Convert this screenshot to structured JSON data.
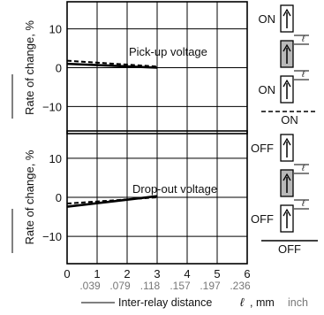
{
  "chart_data": [
    {
      "type": "line",
      "ylabel": "Rate of change, %",
      "annotation": "Pick-up voltage",
      "ylim": [
        -17,
        17
      ],
      "yticks": [
        "10",
        "0",
        "−10"
      ],
      "ytick_values": [
        10,
        0,
        -10
      ],
      "xlim": [
        0,
        6
      ],
      "series": [
        {
          "style": "solid",
          "x": [
            0,
            3
          ],
          "y": [
            1.0,
            0.0
          ]
        },
        {
          "style": "dashed",
          "x": [
            0,
            3
          ],
          "y": [
            1.8,
            0.3
          ]
        }
      ],
      "legend": {
        "top_label": "ON",
        "middle_label": "ON",
        "bottom_label": "ON",
        "distance_symbol": "ℓ"
      }
    },
    {
      "type": "line",
      "ylabel": "Rate of change, %",
      "annotation": "Drop-out voltage",
      "ylim": [
        -17,
        17
      ],
      "yticks": [
        "10",
        "0",
        "−10"
      ],
      "ytick_values": [
        10,
        0,
        -10
      ],
      "xlim": [
        0,
        6
      ],
      "series": [
        {
          "style": "solid",
          "x": [
            0,
            3
          ],
          "y": [
            -2.4,
            0.3
          ]
        },
        {
          "style": "dashed",
          "x": [
            0,
            3
          ],
          "y": [
            -1.6,
            0.0
          ]
        }
      ],
      "legend": {
        "top_label": "OFF",
        "middle_label": "OFF",
        "bottom_label": "OFF",
        "distance_symbol": "ℓ"
      }
    }
  ],
  "x_axis": {
    "ticks_mm": [
      "0",
      "1",
      "2",
      "3",
      "4",
      "5",
      "6"
    ],
    "tick_values": [
      0,
      1,
      2,
      3,
      4,
      5,
      6
    ],
    "ticks_inch": [
      ".039",
      ".079",
      ".118",
      ".157",
      ".197",
      ".236"
    ],
    "label": "Inter-relay distance",
    "label_symbol": "ℓ",
    "label_unit": ", mm",
    "label_unit_alt": "inch"
  }
}
